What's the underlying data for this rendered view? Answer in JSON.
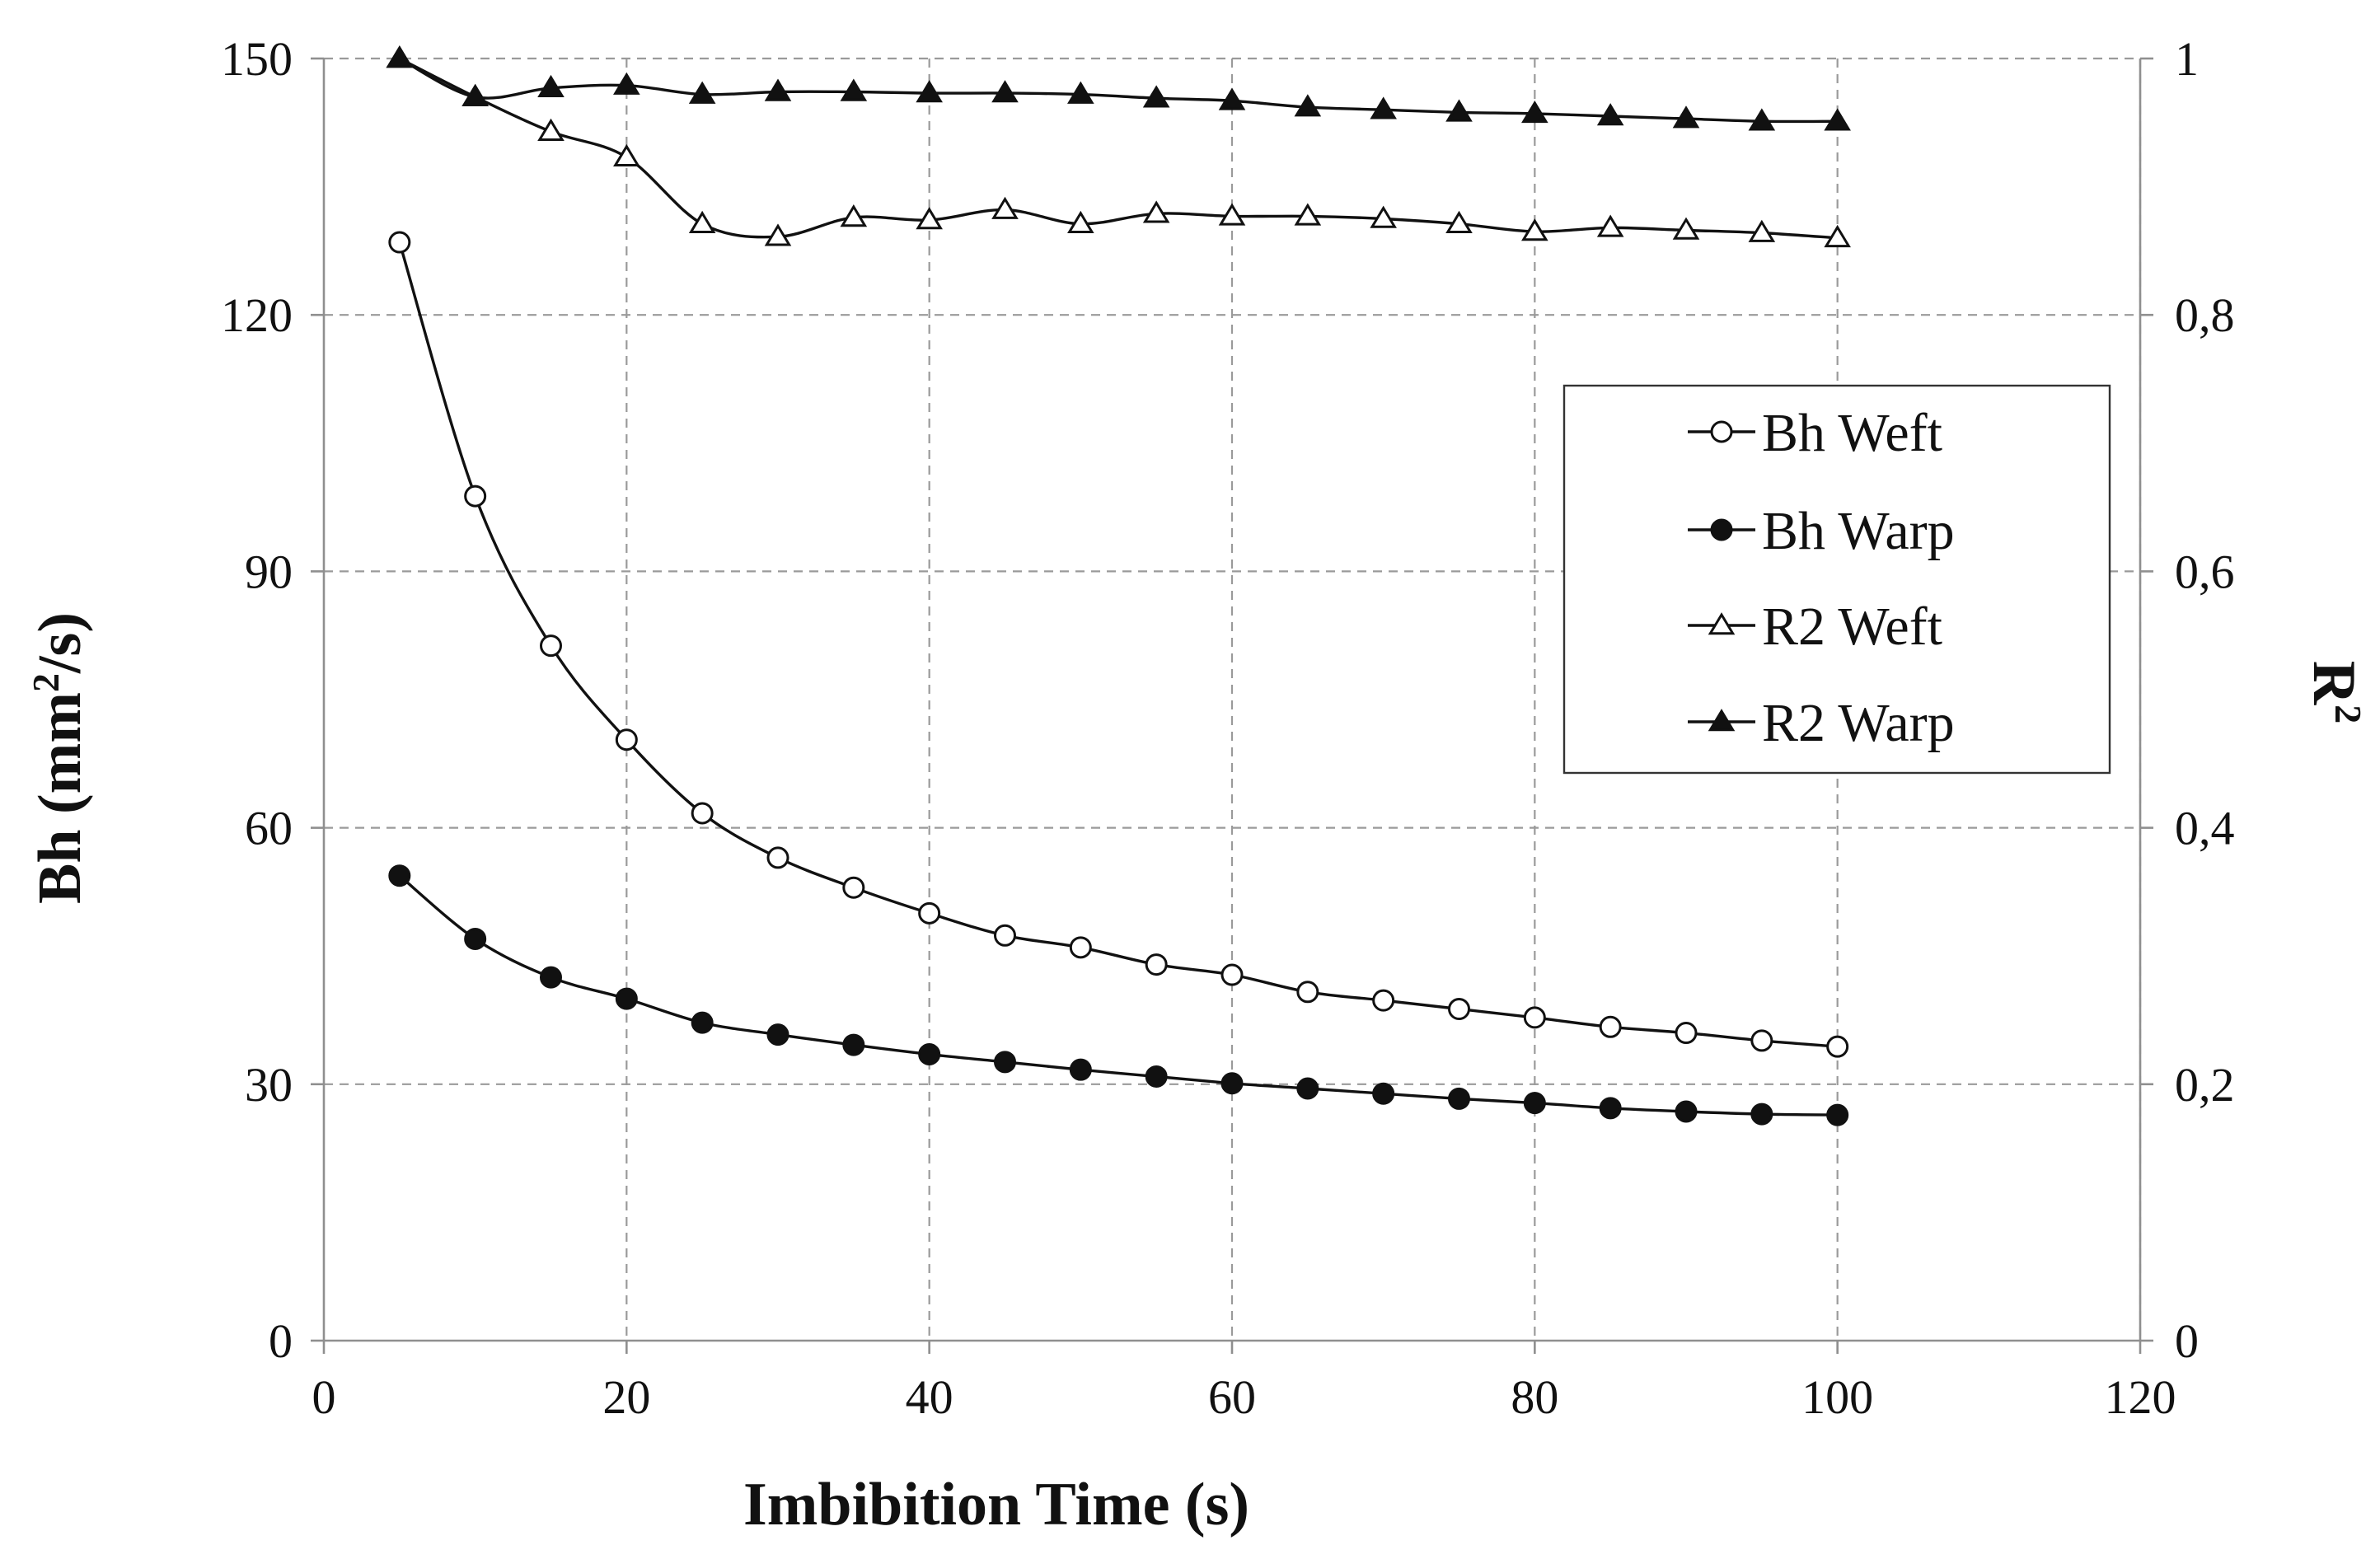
{
  "chart_data": {
    "type": "line",
    "title": "",
    "xlabel": "Imbibition Time (s)",
    "ylabel_left": "Bh (mm",
    "ylabel_left_sup": "2",
    "ylabel_left_end": "/s)",
    "ylabel_right": "R",
    "ylabel_right_sup": "2",
    "xlim": [
      0,
      120
    ],
    "ylim_left": [
      0,
      150
    ],
    "ylim_right": [
      0,
      1
    ],
    "x_ticks": [
      "0",
      "20",
      "40",
      "60",
      "80",
      "100",
      "120"
    ],
    "y_ticks_left": [
      "0",
      "30",
      "60",
      "90",
      "120",
      "150"
    ],
    "y_ticks_right": [
      "0",
      "0,2",
      "0,4",
      "0,6",
      "0,8",
      "1"
    ],
    "grid": true,
    "legend_position": "right",
    "x": [
      5,
      10,
      15,
      20,
      25,
      30,
      35,
      40,
      45,
      50,
      55,
      60,
      65,
      70,
      75,
      80,
      85,
      90,
      95,
      100
    ],
    "series": [
      {
        "name": "Bh Weft",
        "axis": "left",
        "marker": "circle-open",
        "values": [
          128.5,
          98.8,
          81.3,
          70.3,
          61.7,
          56.5,
          53.0,
          50.0,
          47.4,
          46.0,
          44.0,
          42.8,
          40.8,
          39.8,
          38.8,
          37.8,
          36.7,
          36.0,
          35.1,
          34.4
        ]
      },
      {
        "name": "Bh Warp",
        "axis": "left",
        "marker": "circle-filled",
        "values": [
          54.4,
          47.0,
          42.5,
          40.0,
          37.2,
          35.8,
          34.6,
          33.5,
          32.6,
          31.7,
          30.9,
          30.1,
          29.5,
          28.9,
          28.3,
          27.8,
          27.2,
          26.8,
          26.5,
          26.4
        ]
      },
      {
        "name": "R2 Weft",
        "axis": "right",
        "marker": "triangle-open",
        "values": [
          1.0,
          0.97,
          0.943,
          0.923,
          0.871,
          0.861,
          0.876,
          0.874,
          0.882,
          0.871,
          0.879,
          0.877,
          0.877,
          0.875,
          0.871,
          0.865,
          0.868,
          0.866,
          0.864,
          0.86
        ]
      },
      {
        "name": "R2 Warp",
        "axis": "right",
        "marker": "triangle-filled",
        "values": [
          1.0,
          0.97,
          0.977,
          0.979,
          0.972,
          0.974,
          0.974,
          0.973,
          0.973,
          0.972,
          0.969,
          0.967,
          0.962,
          0.96,
          0.958,
          0.957,
          0.955,
          0.953,
          0.951,
          0.951
        ]
      }
    ]
  }
}
